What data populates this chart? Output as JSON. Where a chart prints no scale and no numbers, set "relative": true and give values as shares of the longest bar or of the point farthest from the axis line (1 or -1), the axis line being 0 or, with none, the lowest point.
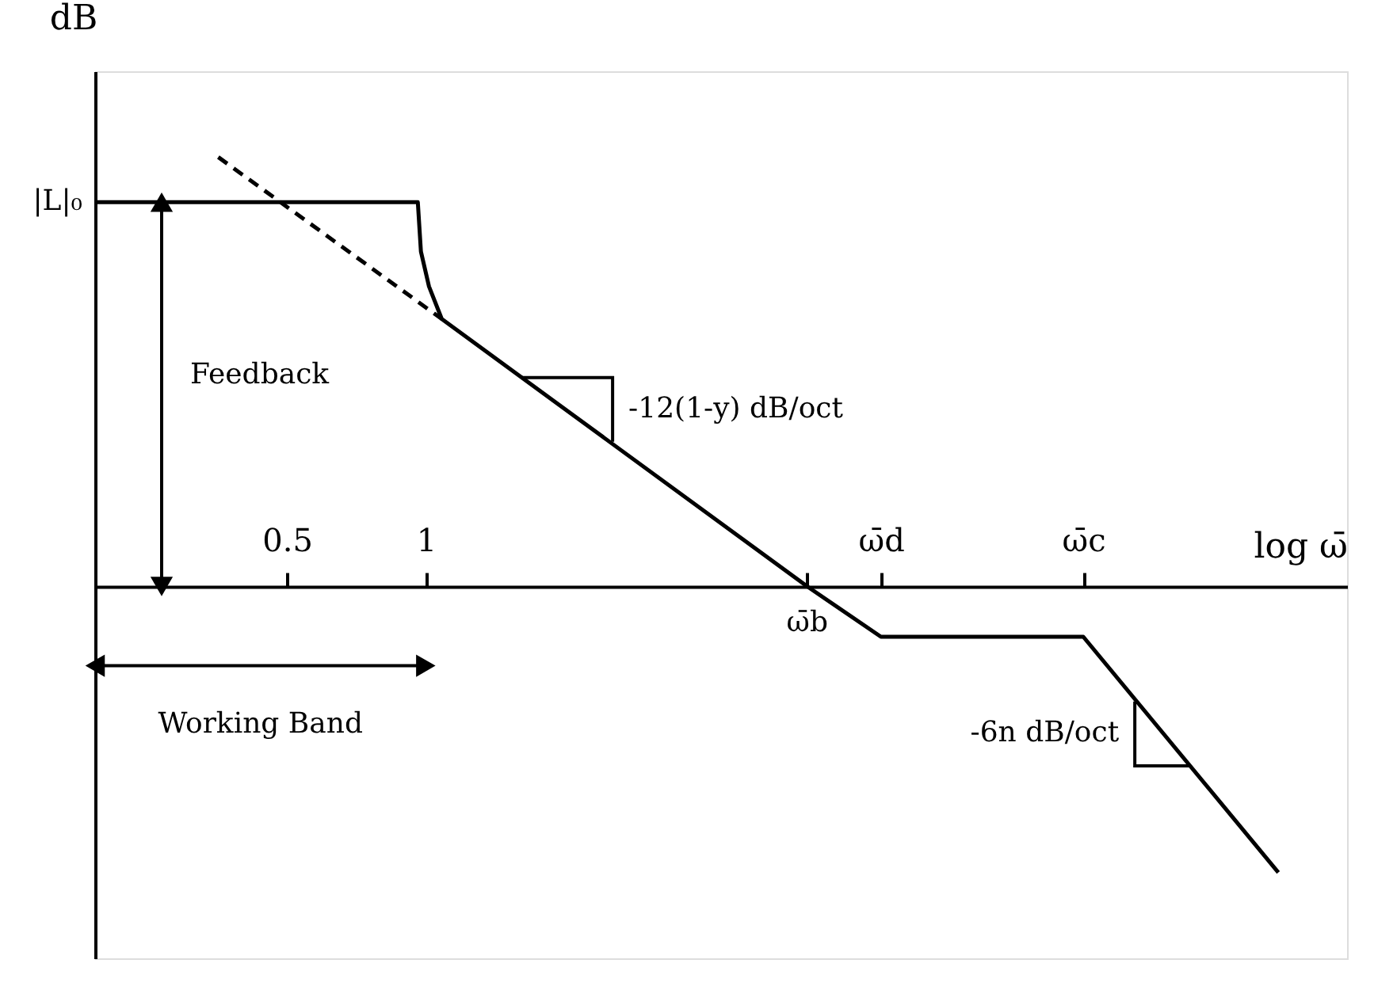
{
  "chart_data": {
    "type": "line",
    "relative": true,
    "xlabel": "log ω̄",
    "ylabel": "dB",
    "log": "x",
    "xlim": [
      0.192,
      99.2
    ],
    "xticks": [
      0.5,
      1,
      {
        "value": 6.71,
        "label": null
      },
      {
        "value": 9.69,
        "label": "ω̄d"
      },
      {
        "value": 26.6,
        "label": "ω̄c"
      }
    ],
    "series": [
      {
        "color": "#000000",
        "line_style": "solid",
        "x": [
          0.192,
          0.961,
          0.976,
          1.016,
          1.083,
          6.71,
          9.69,
          26.6,
          70.4
        ],
        "values": [
          0.895,
          0.895,
          0.78,
          0.699,
          0.623,
          0,
          -0.117,
          -0.117,
          -0.666
        ]
      },
      {
        "color": "#000000",
        "line_style": "dashed",
        "x": [
          0.355,
          1.083
        ],
        "values": [
          1.0,
          0.623
        ]
      }
    ],
    "annotations": [
      "Feedback",
      "Working Band",
      {
        "text": "|L|₀",
        "x": 0.192,
        "y": 0.895
      },
      {
        "text": "ω̄b",
        "x": 6.71,
        "y": 0
      },
      {
        "text": "-12(1-y) dB/oct",
        "x": 2.54,
        "y": 0.337
      },
      {
        "text": "-6n dB/oct",
        "x": 34.4,
        "y": -0.268
      }
    ],
    "grid": false
  }
}
